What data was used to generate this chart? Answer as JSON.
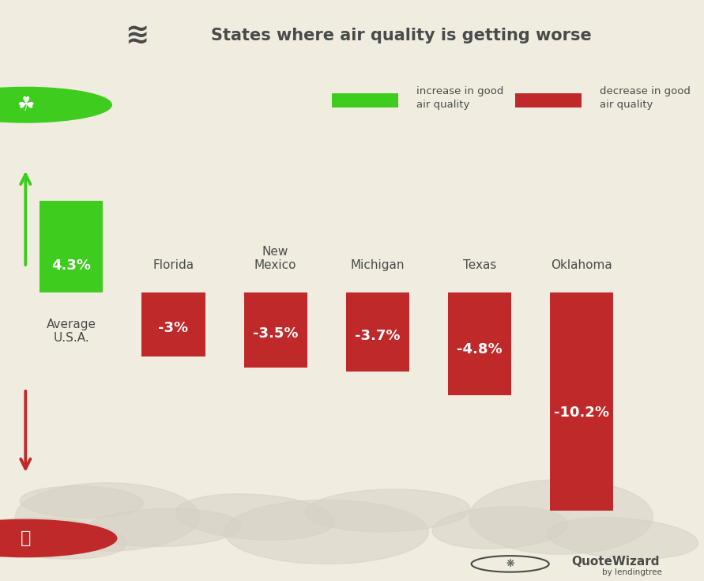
{
  "title": "States where air quality is getting worse",
  "background_color": "#f0ede0",
  "header_bg": "#e5e1d0",
  "categories": [
    "Average\nU.S.A.",
    "Florida",
    "New\nMexico",
    "Michigan",
    "Texas",
    "Oklahoma"
  ],
  "values": [
    4.3,
    -3.0,
    -3.5,
    -3.7,
    -4.8,
    -10.2
  ],
  "labels": [
    "4.3%",
    "-3%",
    "-3.5%",
    "-3.7%",
    "-4.8%",
    "-10.2%"
  ],
  "colors": [
    "#3ecc1e",
    "#c0292a",
    "#c0292a",
    "#c0292a",
    "#c0292a",
    "#c0292a"
  ],
  "green_color": "#3ecc1e",
  "red_color": "#c0292a",
  "text_color": "#4a4a4a",
  "legend_green_label": "increase in good\nair quality",
  "legend_red_label": "decrease in good\nair quality",
  "bar_label_color": "#ffffff",
  "blob_color": "#d5d1c4",
  "header_line_color": "#cccccc"
}
